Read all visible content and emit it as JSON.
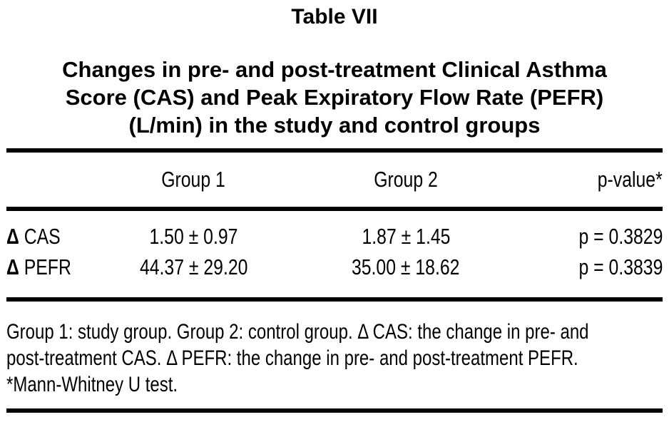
{
  "page": {
    "background": "#ffffff",
    "text_color": "#000000",
    "rule_color": "#000000"
  },
  "table": {
    "caption_label": "Table VII",
    "title_lines": [
      "Changes in pre- and post-treatment Clinical Asthma",
      "Score (CAS) and Peak Expiratory Flow Rate (PEFR)",
      "(L/min) in the study and control groups"
    ],
    "header": {
      "group1": "Group 1",
      "group2": "Group 2",
      "p_value": "p-value*"
    },
    "rows": [
      {
        "symbol": "Δ",
        "name": "CAS",
        "group1": "1.50 ± 0.97",
        "group2": "1.87 ± 1.45",
        "p_value": "p = 0.3829"
      },
      {
        "symbol": "Δ",
        "name": "PEFR",
        "group1": "44.37 ± 29.20",
        "group2": "35.00 ± 18.62",
        "p_value": "p = 0.3839"
      }
    ],
    "footnote_lines": [
      "Group 1: study group. Group 2: control group. Δ CAS: the change in pre- and",
      "post-treatment CAS. Δ PEFR: the change in pre- and post-treatment PEFR.",
      "*Mann-Whitney U test."
    ]
  },
  "chart_data": {
    "type": "table",
    "title": "Table VII — Changes in pre- and post-treatment Clinical Asthma Score (CAS) and Peak Expiratory Flow Rate (PEFR) (L/min) in the study and control groups",
    "columns": [
      "",
      "Group 1",
      "Group 2",
      "p-value*"
    ],
    "rows": [
      [
        "Δ CAS",
        "1.50 ± 0.97",
        "1.87 ± 1.45",
        "p = 0.3829"
      ],
      [
        "Δ PEFR",
        "44.37 ± 29.20",
        "35.00 ± 18.62",
        "p = 0.3839"
      ]
    ],
    "footnote": "Group 1: study group. Group 2: control group. Δ CAS: the change in pre- and post-treatment CAS. Δ PEFR: the change in pre- and post-treatment PEFR. *Mann-Whitney U test."
  }
}
